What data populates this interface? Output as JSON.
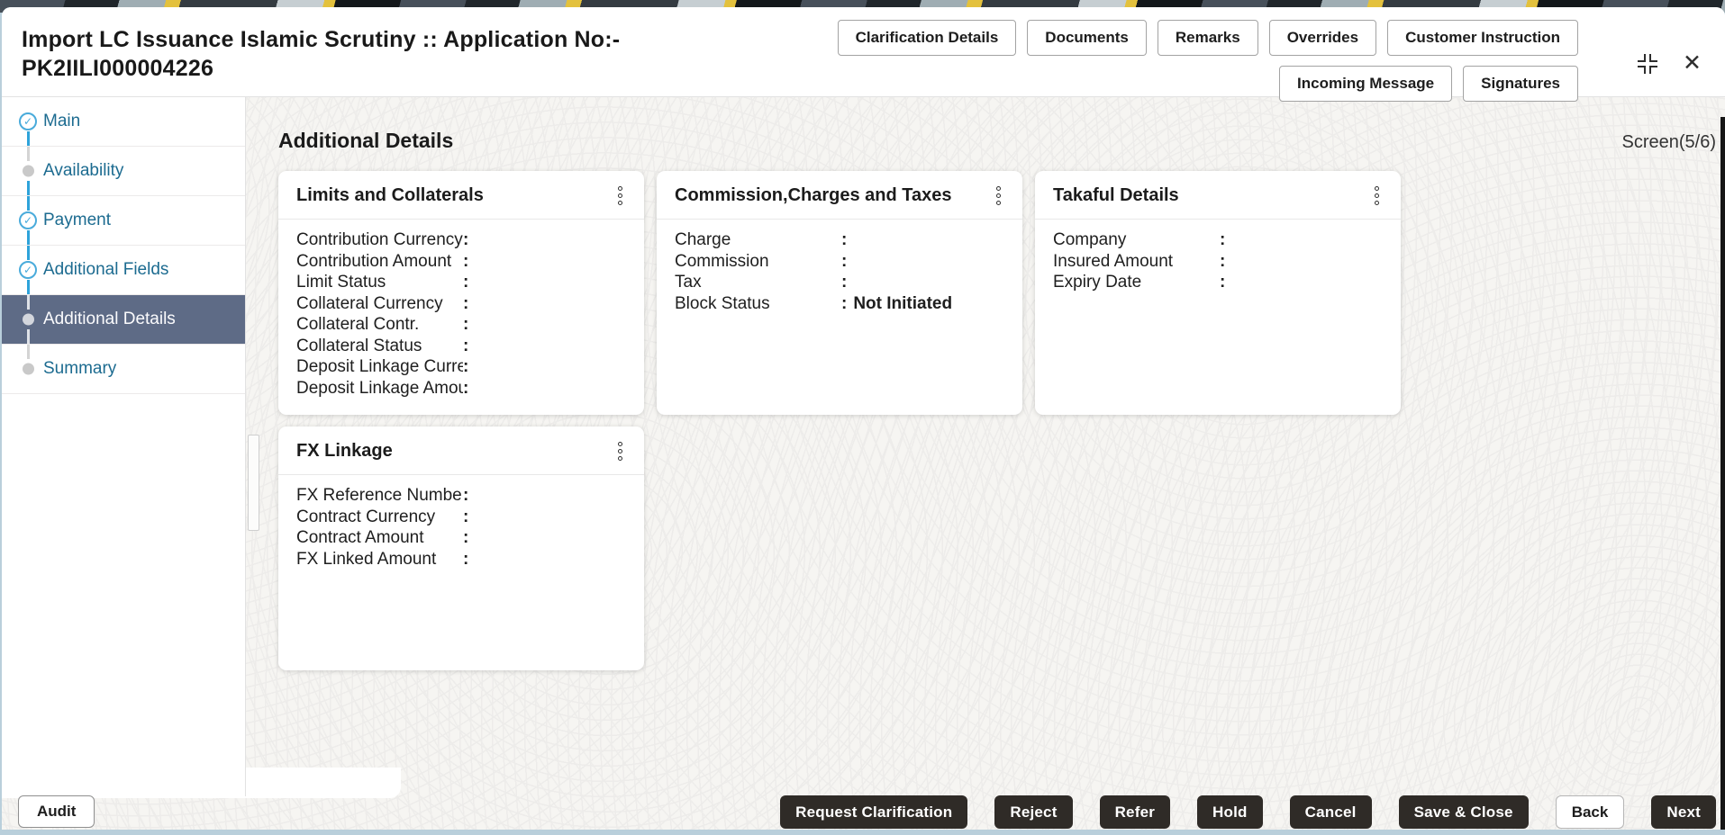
{
  "header": {
    "title": "Import LC Issuance Islamic Scrutiny :: Application No:- PK2IILI000004226",
    "toolbar_row1": [
      "Clarification Details",
      "Documents",
      "Remarks",
      "Overrides",
      "Customer Instruction"
    ],
    "toolbar_row2": [
      "Incoming Message",
      "Signatures"
    ]
  },
  "icons": {
    "check": "✓",
    "close": "✕"
  },
  "sidebar": {
    "items": [
      {
        "label": "Main",
        "state": "completed"
      },
      {
        "label": "Availability",
        "state": "pending"
      },
      {
        "label": "Payment",
        "state": "completed"
      },
      {
        "label": "Additional Fields",
        "state": "completed"
      },
      {
        "label": "Additional Details",
        "state": "active"
      },
      {
        "label": "Summary",
        "state": "pending"
      }
    ]
  },
  "content": {
    "heading": "Additional Details",
    "screen_indicator": "Screen(5/6)",
    "field_separator": ":",
    "cards": [
      {
        "title": "Limits and Collaterals",
        "fields": [
          {
            "label": "Contribution Currency",
            "value": ""
          },
          {
            "label": "Contribution Amount",
            "value": ""
          },
          {
            "label": "Limit Status",
            "value": ""
          },
          {
            "label": "Collateral Currency",
            "value": ""
          },
          {
            "label": "Collateral Contr.",
            "value": ""
          },
          {
            "label": "Collateral Status",
            "value": ""
          },
          {
            "label": "Deposit Linkage Curre",
            "value": ""
          },
          {
            "label": "Deposit Linkage Amou",
            "value": ""
          }
        ]
      },
      {
        "title": "Commission,Charges and Taxes",
        "fields": [
          {
            "label": "Charge",
            "value": ""
          },
          {
            "label": "Commission",
            "value": ""
          },
          {
            "label": "Tax",
            "value": ""
          },
          {
            "label": "Block Status",
            "value": "Not Initiated"
          }
        ]
      },
      {
        "title": "Takaful Details",
        "fields": [
          {
            "label": "Company",
            "value": ""
          },
          {
            "label": "Insured Amount",
            "value": ""
          },
          {
            "label": "Expiry Date",
            "value": ""
          }
        ]
      },
      {
        "title": "FX Linkage",
        "fields": [
          {
            "label": "FX Reference Number",
            "value": ""
          },
          {
            "label": "Contract Currency",
            "value": ""
          },
          {
            "label": "Contract Amount",
            "value": ""
          },
          {
            "label": "FX Linked Amount",
            "value": ""
          }
        ]
      }
    ]
  },
  "footer": {
    "audit": "Audit",
    "primary_actions": [
      "Request Clarification",
      "Reject",
      "Refer",
      "Hold",
      "Cancel",
      "Save & Close"
    ],
    "back": "Back",
    "next": "Next"
  },
  "colors": {
    "link_blue": "#1c6b90",
    "check_blue": "#49abdb",
    "active_step_bg": "#5e6b86",
    "dark_button": "#2f2b27",
    "footer_strip": "#b9cfdb",
    "collage_yellow": "#e3c13d"
  }
}
